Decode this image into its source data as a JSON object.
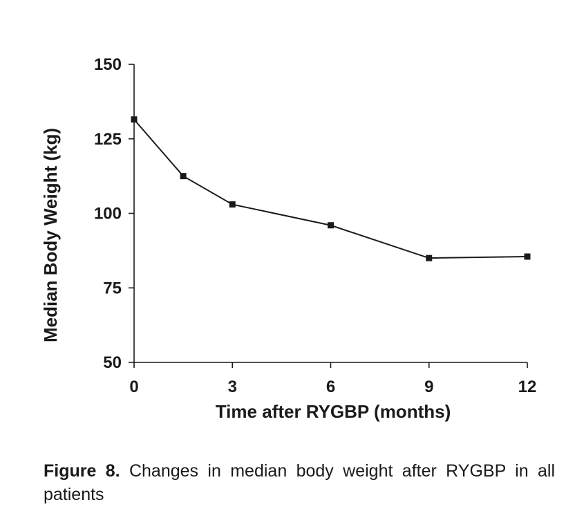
{
  "chart_data": {
    "type": "line",
    "xlabel": "Time after RYGBP (months)",
    "ylabel": "Median Body Weight (kg)",
    "xlim": [
      0,
      12
    ],
    "ylim": [
      50,
      150
    ],
    "x_ticks": [
      "0",
      "3",
      "6",
      "9",
      "12"
    ],
    "y_ticks": [
      "50",
      "75",
      "100",
      "125",
      "150"
    ],
    "grid": false,
    "series": [
      {
        "x": [
          0,
          1.5,
          3,
          6,
          9,
          12
        ],
        "y": [
          131.5,
          112.5,
          103,
          96,
          85,
          85.5
        ]
      }
    ]
  },
  "caption": {
    "label": "Figure 8.",
    "text": " Changes in median body weight after RYGBP in all patients"
  }
}
